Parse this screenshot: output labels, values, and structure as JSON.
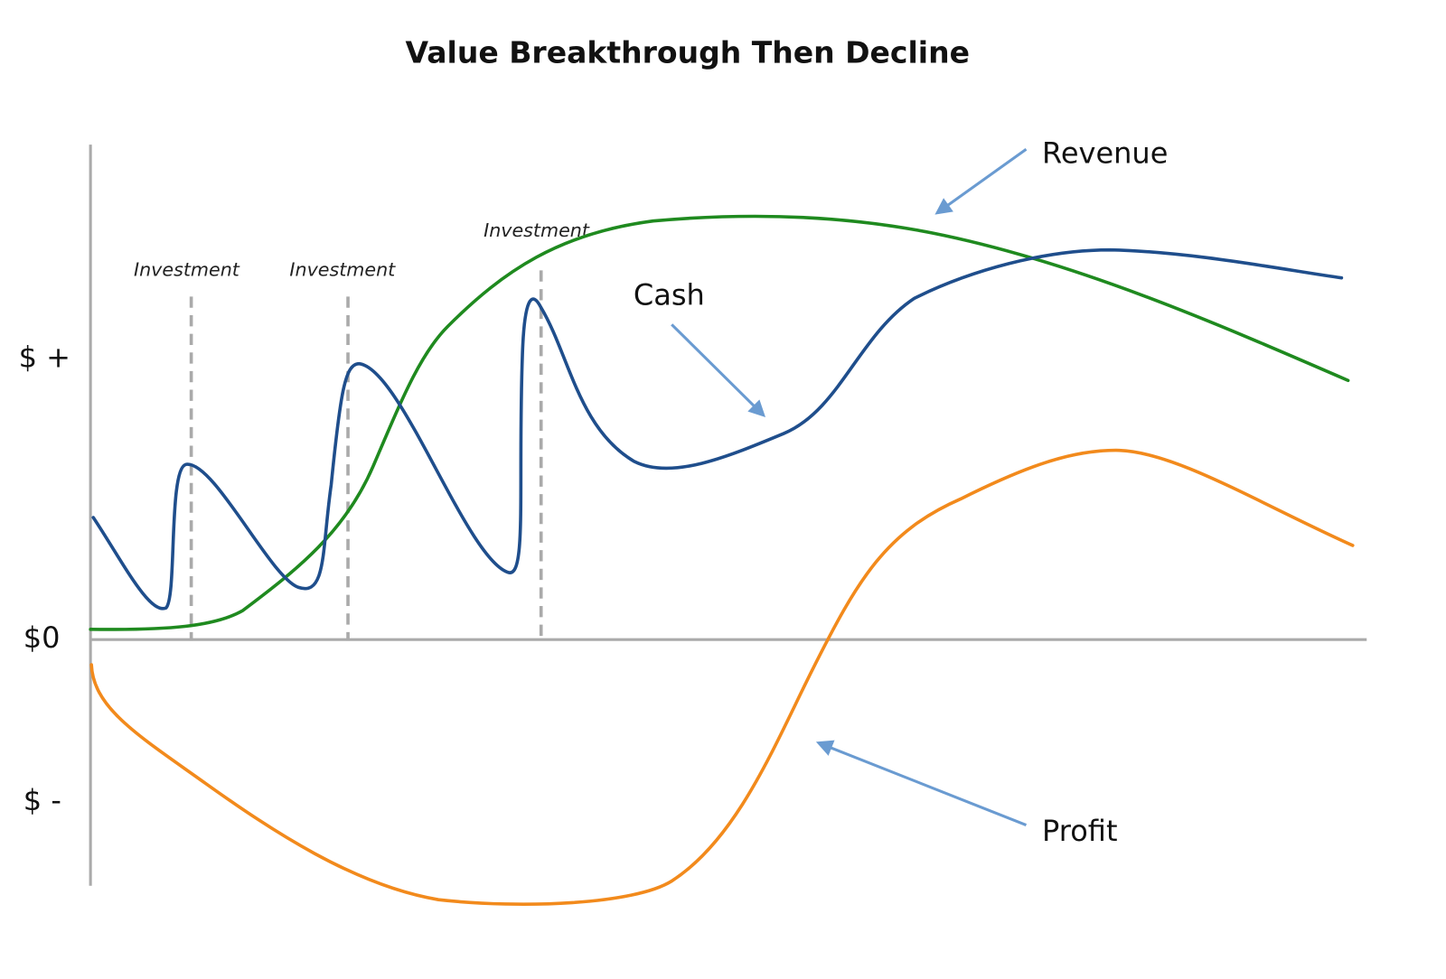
{
  "title": "Value Breakthrough Then Decline",
  "axis_labels": [
    "$ +",
    "$0",
    "$ -"
  ],
  "curve_labels": {
    "revenue": "Revenue",
    "cash": "Cash",
    "profit": "Profit"
  },
  "investment_labels": [
    "Investment",
    "Investment",
    "Investment"
  ]
}
